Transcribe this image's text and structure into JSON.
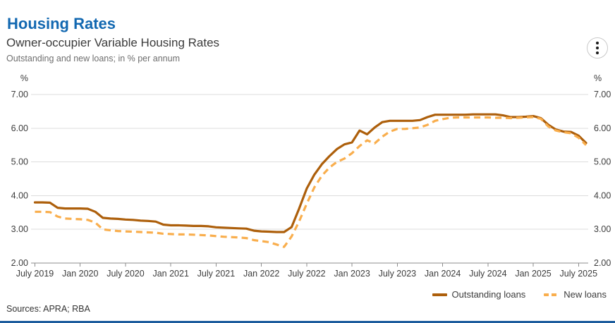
{
  "header": {
    "title": "Housing Rates"
  },
  "chart": {
    "subtitle": "Owner-occupier Variable Housing Rates",
    "description": "Outstanding and new loans; in % per annum",
    "menu_icon": "kebab-menu"
  },
  "footer": {
    "sources": "Sources: APRA; RBA"
  },
  "colors": {
    "title_blue": "#1268b1",
    "axis": "#8c8c8c",
    "gridline": "#dcdcdc",
    "tick_text": "#3c3c3c",
    "bottom_bar": "#1c5c9d",
    "outstanding_loans": "#ad5f0b",
    "new_loans": "#f9ae4d"
  },
  "chart_data": {
    "type": "line",
    "title": "Owner-occupier Variable Housing Rates",
    "subtitle": "Outstanding and new loans; in % per annum",
    "unit": "%",
    "frequency": "monthly",
    "x_start": "July 2019",
    "x_end": "August 2025",
    "x_tick_labels": [
      "July 2019",
      "Jan 2020",
      "July 2020",
      "Jan 2021",
      "July 2021",
      "Jan 2022",
      "July 2022",
      "Jan 2023",
      "July 2023",
      "Jan 2024",
      "July 2024",
      "Jan 2025",
      "July 2025"
    ],
    "x_tick_month_indices": [
      0,
      6,
      12,
      18,
      24,
      30,
      36,
      42,
      48,
      54,
      60,
      66,
      72
    ],
    "y_ticks": [
      2,
      3,
      4,
      5,
      6,
      7
    ],
    "y_tick_format": "two-decimals",
    "ylim": [
      2,
      7
    ],
    "grid": "horizontal",
    "legend_position": "bottom-right",
    "series": [
      {
        "name": "Outstanding loans",
        "style": "solid",
        "color": "#ad5f0b",
        "values": [
          3.8,
          3.8,
          3.79,
          3.64,
          3.62,
          3.62,
          3.62,
          3.61,
          3.52,
          3.34,
          3.32,
          3.31,
          3.29,
          3.28,
          3.26,
          3.25,
          3.23,
          3.14,
          3.12,
          3.12,
          3.11,
          3.1,
          3.1,
          3.09,
          3.06,
          3.05,
          3.04,
          3.03,
          3.02,
          2.96,
          2.94,
          2.93,
          2.92,
          2.92,
          3.07,
          3.62,
          4.21,
          4.62,
          4.93,
          5.17,
          5.38,
          5.52,
          5.58,
          5.93,
          5.82,
          6.02,
          6.18,
          6.22,
          6.22,
          6.22,
          6.22,
          6.24,
          6.33,
          6.4,
          6.4,
          6.4,
          6.4,
          6.4,
          6.41,
          6.41,
          6.41,
          6.41,
          6.38,
          6.33,
          6.33,
          6.34,
          6.36,
          6.3,
          6.1,
          5.96,
          5.9,
          5.89,
          5.78,
          5.56
        ]
      },
      {
        "name": "New loans",
        "style": "dashed",
        "color": "#f9ae4d",
        "values": [
          3.52,
          3.52,
          3.51,
          3.38,
          3.32,
          3.31,
          3.3,
          3.28,
          3.2,
          3.0,
          2.97,
          2.95,
          2.94,
          2.93,
          2.92,
          2.91,
          2.9,
          2.87,
          2.86,
          2.85,
          2.85,
          2.84,
          2.83,
          2.82,
          2.8,
          2.78,
          2.77,
          2.76,
          2.74,
          2.68,
          2.65,
          2.62,
          2.55,
          2.48,
          2.79,
          3.24,
          3.76,
          4.24,
          4.59,
          4.83,
          5.0,
          5.1,
          5.26,
          5.47,
          5.64,
          5.55,
          5.75,
          5.9,
          5.98,
          5.98,
          6.0,
          6.02,
          6.1,
          6.22,
          6.27,
          6.31,
          6.32,
          6.32,
          6.32,
          6.32,
          6.32,
          6.31,
          6.31,
          6.3,
          6.31,
          6.32,
          6.33,
          6.28,
          6.05,
          5.93,
          5.88,
          5.85,
          5.72,
          5.5
        ]
      }
    ]
  }
}
